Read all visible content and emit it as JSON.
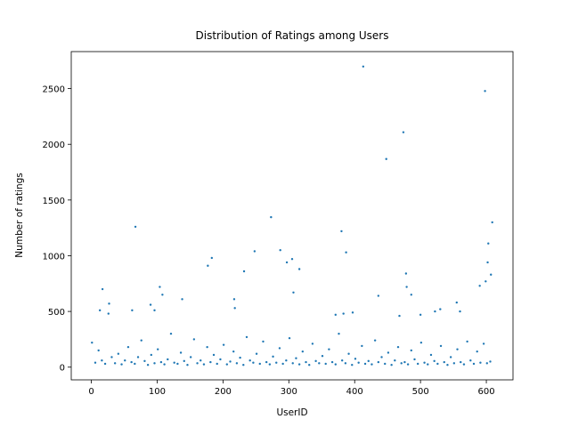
{
  "chart_data": {
    "type": "scatter",
    "title": "Distribution of Ratings among Users",
    "x_label": "UserID",
    "y_label": "Number of ratings",
    "color": "#1f77b4",
    "x": [
      1,
      6,
      11,
      16,
      21,
      26,
      31,
      36,
      41,
      46,
      51,
      56,
      61,
      66,
      71,
      76,
      81,
      86,
      91,
      96,
      101,
      106,
      111,
      116,
      121,
      126,
      131,
      136,
      141,
      146,
      151,
      156,
      161,
      166,
      171,
      176,
      181,
      186,
      191,
      196,
      201,
      206,
      211,
      216,
      221,
      226,
      231,
      236,
      241,
      246,
      251,
      256,
      261,
      266,
      271,
      276,
      281,
      286,
      291,
      296,
      301,
      306,
      311,
      316,
      321,
      326,
      331,
      336,
      341,
      346,
      351,
      356,
      361,
      366,
      371,
      376,
      381,
      386,
      391,
      396,
      401,
      406,
      411,
      416,
      421,
      426,
      431,
      436,
      441,
      446,
      451,
      456,
      461,
      466,
      471,
      476,
      481,
      486,
      491,
      496,
      501,
      506,
      511,
      516,
      521,
      526,
      531,
      536,
      541,
      546,
      551,
      556,
      561,
      566,
      571,
      576,
      581,
      586,
      591,
      596,
      601,
      606,
      413,
      598,
      474,
      448,
      67,
      273,
      380,
      609,
      603,
      287,
      248,
      387,
      183,
      305,
      297,
      177,
      602,
      607,
      599,
      590,
      232,
      316,
      478,
      479,
      104,
      17,
      307,
      486,
      108,
      436,
      138,
      217,
      27,
      90,
      555,
      13,
      62,
      96,
      218,
      530,
      522,
      560,
      371,
      383,
      397,
      468,
      500
    ],
    "values": [
      220,
      40,
      150,
      60,
      30,
      480,
      90,
      35,
      120,
      25,
      60,
      180,
      45,
      30,
      90,
      240,
      55,
      20,
      110,
      35,
      160,
      45,
      25,
      70,
      300,
      40,
      30,
      130,
      55,
      20,
      90,
      250,
      35,
      60,
      25,
      180,
      45,
      110,
      30,
      70,
      200,
      25,
      50,
      140,
      35,
      85,
      20,
      270,
      60,
      40,
      120,
      30,
      230,
      45,
      25,
      95,
      40,
      170,
      30,
      60,
      260,
      35,
      80,
      25,
      140,
      45,
      20,
      210,
      55,
      35,
      100,
      30,
      160,
      45,
      25,
      300,
      60,
      35,
      120,
      20,
      75,
      40,
      190,
      30,
      55,
      25,
      240,
      45,
      90,
      30,
      130,
      20,
      60,
      180,
      35,
      45,
      25,
      150,
      70,
      30,
      220,
      40,
      25,
      110,
      55,
      30,
      190,
      45,
      20,
      90,
      35,
      160,
      45,
      25,
      230,
      60,
      30,
      140,
      40,
      210,
      35,
      50,
      2698,
      2478,
      2108,
      1868,
      1260,
      1346,
      1220,
      1300,
      1110,
      1050,
      1040,
      1030,
      980,
      970,
      940,
      910,
      940,
      830,
      770,
      730,
      860,
      880,
      840,
      720,
      720,
      700,
      670,
      650,
      650,
      640,
      610,
      610,
      570,
      560,
      580,
      510,
      510,
      510,
      530,
      520,
      500,
      500,
      470,
      480,
      490,
      460,
      470
    ],
    "xlim": [
      -30.5,
      640.5
    ],
    "ylim": [
      -114,
      2832
    ],
    "xticks": [
      0,
      100,
      200,
      300,
      400,
      500,
      600
    ],
    "yticks": [
      0,
      500,
      1000,
      1500,
      2000,
      2500
    ]
  }
}
